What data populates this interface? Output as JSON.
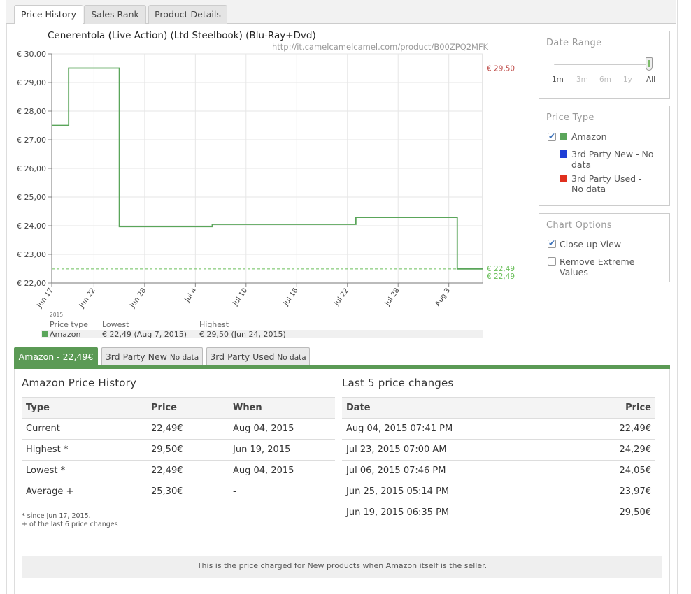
{
  "tabs": [
    "Price History",
    "Sales Rank",
    "Product Details"
  ],
  "chart": {
    "title": "Cenerentola (Live Action) (Ltd Steelbook) (Blu-Ray+Dvd)",
    "url": "http://it.camelcamelcamel.com/product/B00ZPQ2MFK",
    "year_label": "2015",
    "max_label": "€ 29,50",
    "min_label_1": "€ 22,49",
    "min_label_2": "€ 22,49"
  },
  "chart_data": {
    "type": "line",
    "step": true,
    "y_ticks": [
      "€ 30,00",
      "€ 29,00",
      "€ 28,00",
      "€ 27,00",
      "€ 26,00",
      "€ 25,00",
      "€ 24,00",
      "€ 23,00",
      "€ 22,00"
    ],
    "x_ticks": [
      "Jun 17",
      "Jun 22",
      "Jun 28",
      "Jul 4",
      "Jul 10",
      "Jul 16",
      "Jul 22",
      "Jul 28",
      "Aug 3"
    ],
    "ylim": [
      22,
      30
    ],
    "grid": true,
    "series": [
      {
        "name": "Amazon",
        "color": "#5aa55a",
        "points": [
          {
            "x": "2015-06-17",
            "y": 27.5
          },
          {
            "x": "2015-06-19",
            "y": 29.5
          },
          {
            "x": "2015-06-25",
            "y": 23.97
          },
          {
            "x": "2015-07-06",
            "y": 24.05
          },
          {
            "x": "2015-07-23",
            "y": 24.29
          },
          {
            "x": "2015-08-04",
            "y": 22.49
          },
          {
            "x": "2015-08-07",
            "y": 22.49
          }
        ]
      }
    ],
    "reference_lines": [
      {
        "y": 29.5,
        "color": "#c0504d"
      },
      {
        "y": 22.49,
        "color": "#6abf5a"
      }
    ]
  },
  "legend": {
    "headers": [
      "Price type",
      "Lowest",
      "Highest"
    ],
    "rows": [
      {
        "type": "Amazon",
        "lowest": "€ 22,49 (Aug 7, 2015)",
        "highest": "€ 29,50 (Jun 24, 2015)"
      }
    ]
  },
  "date_range": {
    "title": "Date Range",
    "options": [
      "1m",
      "3m",
      "6m",
      "1y",
      "All"
    ],
    "selected": "All"
  },
  "price_type": {
    "title": "Price Type",
    "items": [
      {
        "label": "Amazon",
        "color": "#5aa55a",
        "checked": true
      },
      {
        "label": "3rd Party New - No data",
        "color": "#1f3fd6",
        "checked": false
      },
      {
        "label": "3rd Party Used - No data",
        "color": "#e0301e",
        "checked": false
      }
    ]
  },
  "chart_options": {
    "title": "Chart Options",
    "items": [
      {
        "label": "Close-up View",
        "checked": true
      },
      {
        "label": "Remove Extreme Values",
        "checked": false
      }
    ]
  },
  "bottom_tabs": [
    {
      "label": "Amazon - 22,49€",
      "suffix": ""
    },
    {
      "label": "3rd Party New ",
      "suffix": "No data"
    },
    {
      "label": "3rd Party Used ",
      "suffix": "No data"
    }
  ],
  "history": {
    "title": "Amazon Price History",
    "headers": [
      "Type",
      "Price",
      "When"
    ],
    "rows": [
      {
        "type": "Current",
        "price": "22,49€",
        "when": "Aug 04, 2015"
      },
      {
        "type": "Highest *",
        "price": "29,50€",
        "when": "Jun 19, 2015"
      },
      {
        "type": "Lowest *",
        "price": "22,49€",
        "when": "Aug 04, 2015"
      },
      {
        "type": "Average +",
        "price": "25,30€",
        "when": "-"
      }
    ],
    "note1": "* since Jun 17, 2015.",
    "note2": "+ of the last 6 price changes"
  },
  "changes": {
    "title": "Last 5 price changes",
    "headers": [
      "Date",
      "Price"
    ],
    "rows": [
      {
        "date": "Aug 04, 2015 07:41 PM",
        "price": "22,49€"
      },
      {
        "date": "Jul 23, 2015 07:00 AM",
        "price": "24,29€"
      },
      {
        "date": "Jul 06, 2015 07:46 PM",
        "price": "24,05€"
      },
      {
        "date": "Jun 25, 2015 05:14 PM",
        "price": "23,97€"
      },
      {
        "date": "Jun 19, 2015 06:35 PM",
        "price": "29,50€"
      }
    ]
  },
  "footer_note": "This is the price charged for New products when Amazon itself is the seller."
}
